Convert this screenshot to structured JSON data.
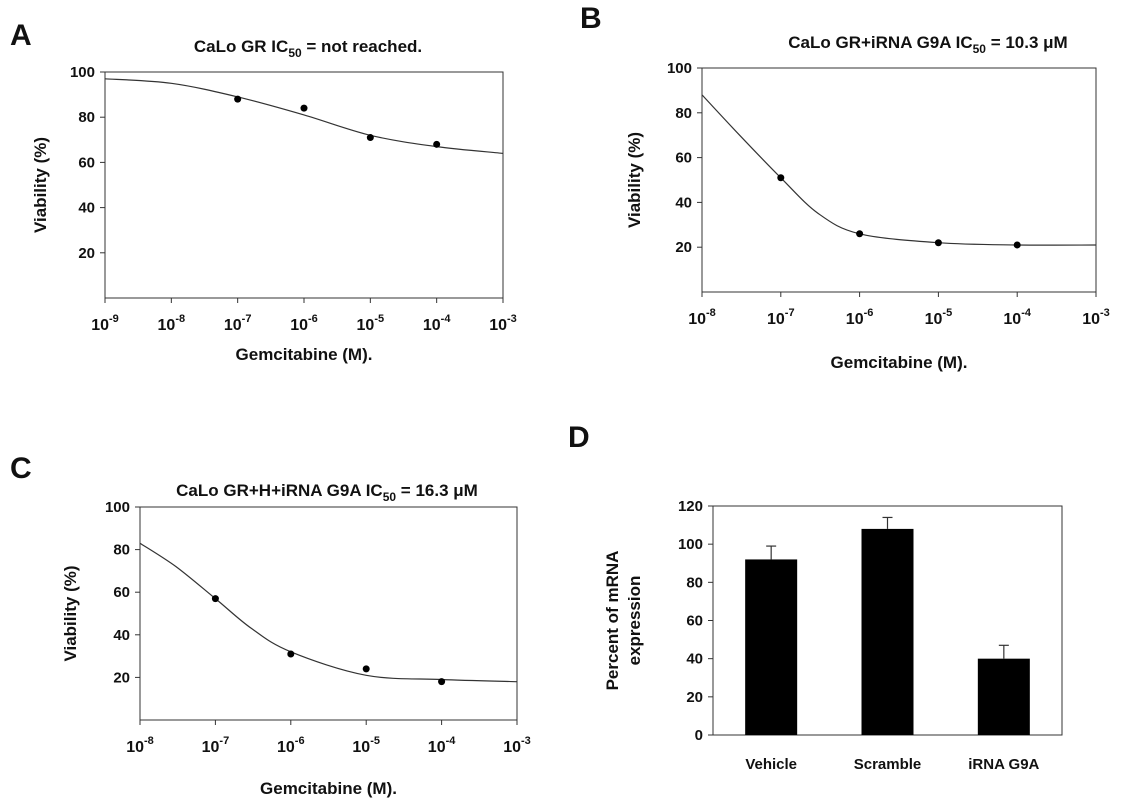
{
  "figure": {
    "panels": [
      "A",
      "B",
      "C",
      "D"
    ]
  },
  "chart_data": [
    {
      "panel": "A",
      "type": "scatter",
      "title_prefix": "CaLo GR IC",
      "title_subscript": "50",
      "title_suffix": " = not reached.",
      "xlabel": "Gemcitabine (M).",
      "ylabel": "Viability (%)",
      "x_scale": "log",
      "xlim": [
        1e-09,
        0.001
      ],
      "ylim": [
        0,
        100
      ],
      "x_ticks": [
        "10-9",
        "10-8",
        "10-7",
        "10-6",
        "10-5",
        "10-4",
        "10-3"
      ],
      "y_ticks": [
        20,
        40,
        60,
        80,
        100
      ],
      "points": {
        "x": [
          1e-07,
          1e-06,
          1e-05,
          0.0001
        ],
        "y": [
          88,
          84,
          71,
          68
        ]
      },
      "fit_curve": {
        "x": [
          1e-09,
          1e-08,
          1e-07,
          1e-06,
          1e-05,
          0.0001,
          0.001
        ],
        "y": [
          97,
          95,
          89,
          81,
          72,
          67,
          64
        ]
      }
    },
    {
      "panel": "B",
      "type": "scatter",
      "title_prefix": "CaLo GR+iRNA G9A  IC",
      "title_subscript": "50",
      "title_suffix": " = 10.3 μM",
      "xlabel": "Gemcitabine (M).",
      "ylabel": "Viability (%)",
      "x_scale": "log",
      "xlim": [
        1e-08,
        0.001
      ],
      "ylim": [
        0,
        100
      ],
      "x_ticks": [
        "10-8",
        "10-7",
        "10-6",
        "10-5",
        "10-4",
        "10-3"
      ],
      "y_ticks": [
        20,
        40,
        60,
        80,
        100
      ],
      "points": {
        "x": [
          1e-07,
          1e-06,
          1e-05,
          0.0001
        ],
        "y": [
          51,
          26,
          22,
          21
        ]
      },
      "fit_curve": {
        "x": [
          1e-08,
          3e-08,
          1e-07,
          3e-07,
          1e-06,
          1e-05,
          0.0001,
          0.001
        ],
        "y": [
          88,
          70,
          51,
          35,
          26,
          22,
          21,
          21
        ]
      }
    },
    {
      "panel": "C",
      "type": "scatter",
      "title_prefix": "CaLo GR+H+iRNA G9A  IC",
      "title_subscript": "50",
      "title_suffix": " = 16.3 μM",
      "xlabel": "Gemcitabine (M).",
      "ylabel": "Viability (%)",
      "x_scale": "log",
      "xlim": [
        1e-08,
        0.001
      ],
      "ylim": [
        0,
        100
      ],
      "x_ticks": [
        "10-8",
        "10-7",
        "10-6",
        "10-5",
        "10-4",
        "10-3"
      ],
      "y_ticks": [
        20,
        40,
        60,
        80,
        100
      ],
      "points": {
        "x": [
          1e-07,
          1e-06,
          1e-05,
          0.0001
        ],
        "y": [
          57,
          31,
          24,
          18
        ]
      },
      "fit_curve": {
        "x": [
          1e-08,
          3e-08,
          1e-07,
          3e-07,
          1e-06,
          1e-05,
          0.0001,
          0.001
        ],
        "y": [
          83,
          72,
          57,
          43,
          32,
          21,
          19,
          18
        ]
      }
    },
    {
      "panel": "D",
      "type": "bar",
      "ylabel_line1": "Percent of mRNA",
      "ylabel_line2": "expression",
      "categories": [
        "Vehicle",
        "Scramble",
        "iRNA G9A"
      ],
      "values": [
        92,
        108,
        40
      ],
      "errors": [
        7,
        6,
        7
      ],
      "ylim": [
        0,
        120
      ],
      "y_ticks": [
        0,
        20,
        40,
        60,
        80,
        100,
        120
      ],
      "bar_color": "#000000"
    }
  ]
}
